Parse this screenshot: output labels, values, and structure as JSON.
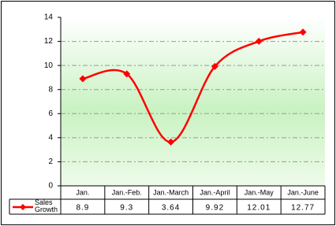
{
  "chart_data": {
    "type": "line",
    "categories": [
      "Jan.",
      "Jan.-Feb.",
      "Jan.-March",
      "Jan.-April",
      "Jan.-May",
      "Jan.-June"
    ],
    "series": [
      {
        "name": "Sales Growth",
        "color": "#ff0000",
        "values": [
          8.9,
          9.3,
          3.64,
          9.92,
          12.01,
          12.77
        ]
      }
    ],
    "ylim": [
      0,
      14
    ],
    "yticks": [
      0,
      2,
      4,
      6,
      8,
      10,
      12,
      14
    ],
    "grid": true,
    "smooth": true,
    "data_table": true
  }
}
